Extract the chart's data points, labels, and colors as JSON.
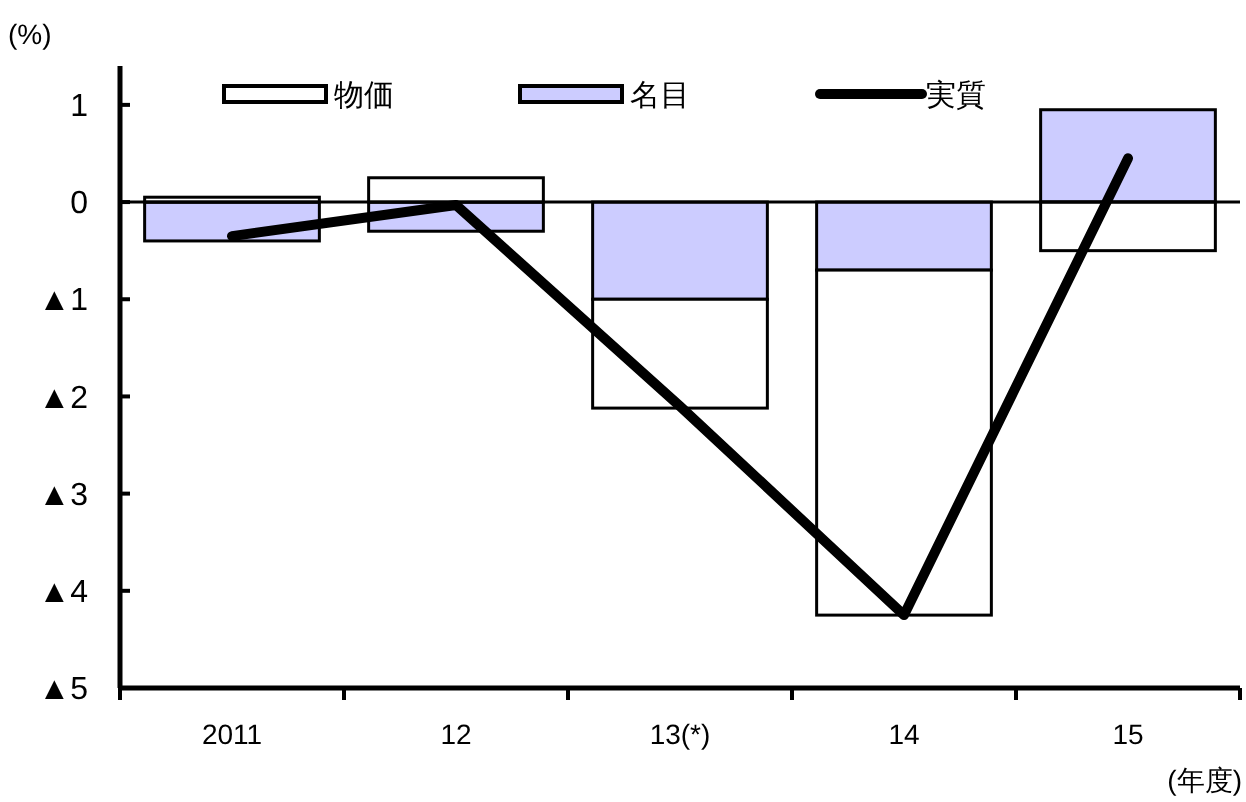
{
  "chart_data": {
    "type": "bar",
    "stacked": true,
    "ylabel": "(%)",
    "xlabel": "(年度)",
    "categories": [
      "2011",
      "12",
      "13(*)",
      "14",
      "15"
    ],
    "series": [
      {
        "name": "名目",
        "color": "#ccccff",
        "values": [
          -0.4,
          -0.3,
          -1.0,
          -0.7,
          0.95
        ]
      },
      {
        "name": "物価",
        "color": "#ffffff",
        "values": [
          0.05,
          0.25,
          -1.12,
          -3.55,
          -0.5
        ]
      },
      {
        "name": "実質",
        "type": "line",
        "color": "#000000",
        "values": [
          -0.35,
          -0.03,
          -2.1,
          -4.25,
          0.45
        ]
      }
    ],
    "ylim": [
      -5,
      1.4
    ],
    "yticks": [
      {
        "value": 1,
        "label": "1"
      },
      {
        "value": 0,
        "label": "0"
      },
      {
        "value": -1,
        "label": "▲1"
      },
      {
        "value": -2,
        "label": "▲2"
      },
      {
        "value": -3,
        "label": "▲3"
      },
      {
        "value": -4,
        "label": "▲4"
      },
      {
        "value": -5,
        "label": "▲5"
      }
    ],
    "legend": "top"
  }
}
